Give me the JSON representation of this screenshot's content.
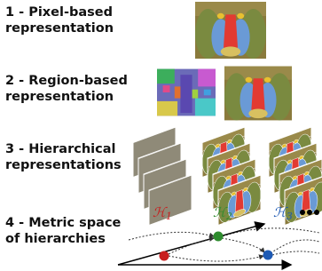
{
  "sections": [
    {
      "lines": [
        "1 - Pixel-based",
        "representation"
      ]
    },
    {
      "lines": [
        "2 - Region-based",
        "representation"
      ]
    },
    {
      "lines": [
        "3 - Hierarchical",
        "representations"
      ]
    },
    {
      "lines": [
        "4 - Metric space",
        "of hierarchies"
      ]
    }
  ],
  "hierarchy_labels": [
    {
      "symbol": "ℋ",
      "index": "1"
    },
    {
      "symbol": "ℋ",
      "index": "2"
    },
    {
      "symbol": "ℋ",
      "index": "3"
    }
  ]
}
